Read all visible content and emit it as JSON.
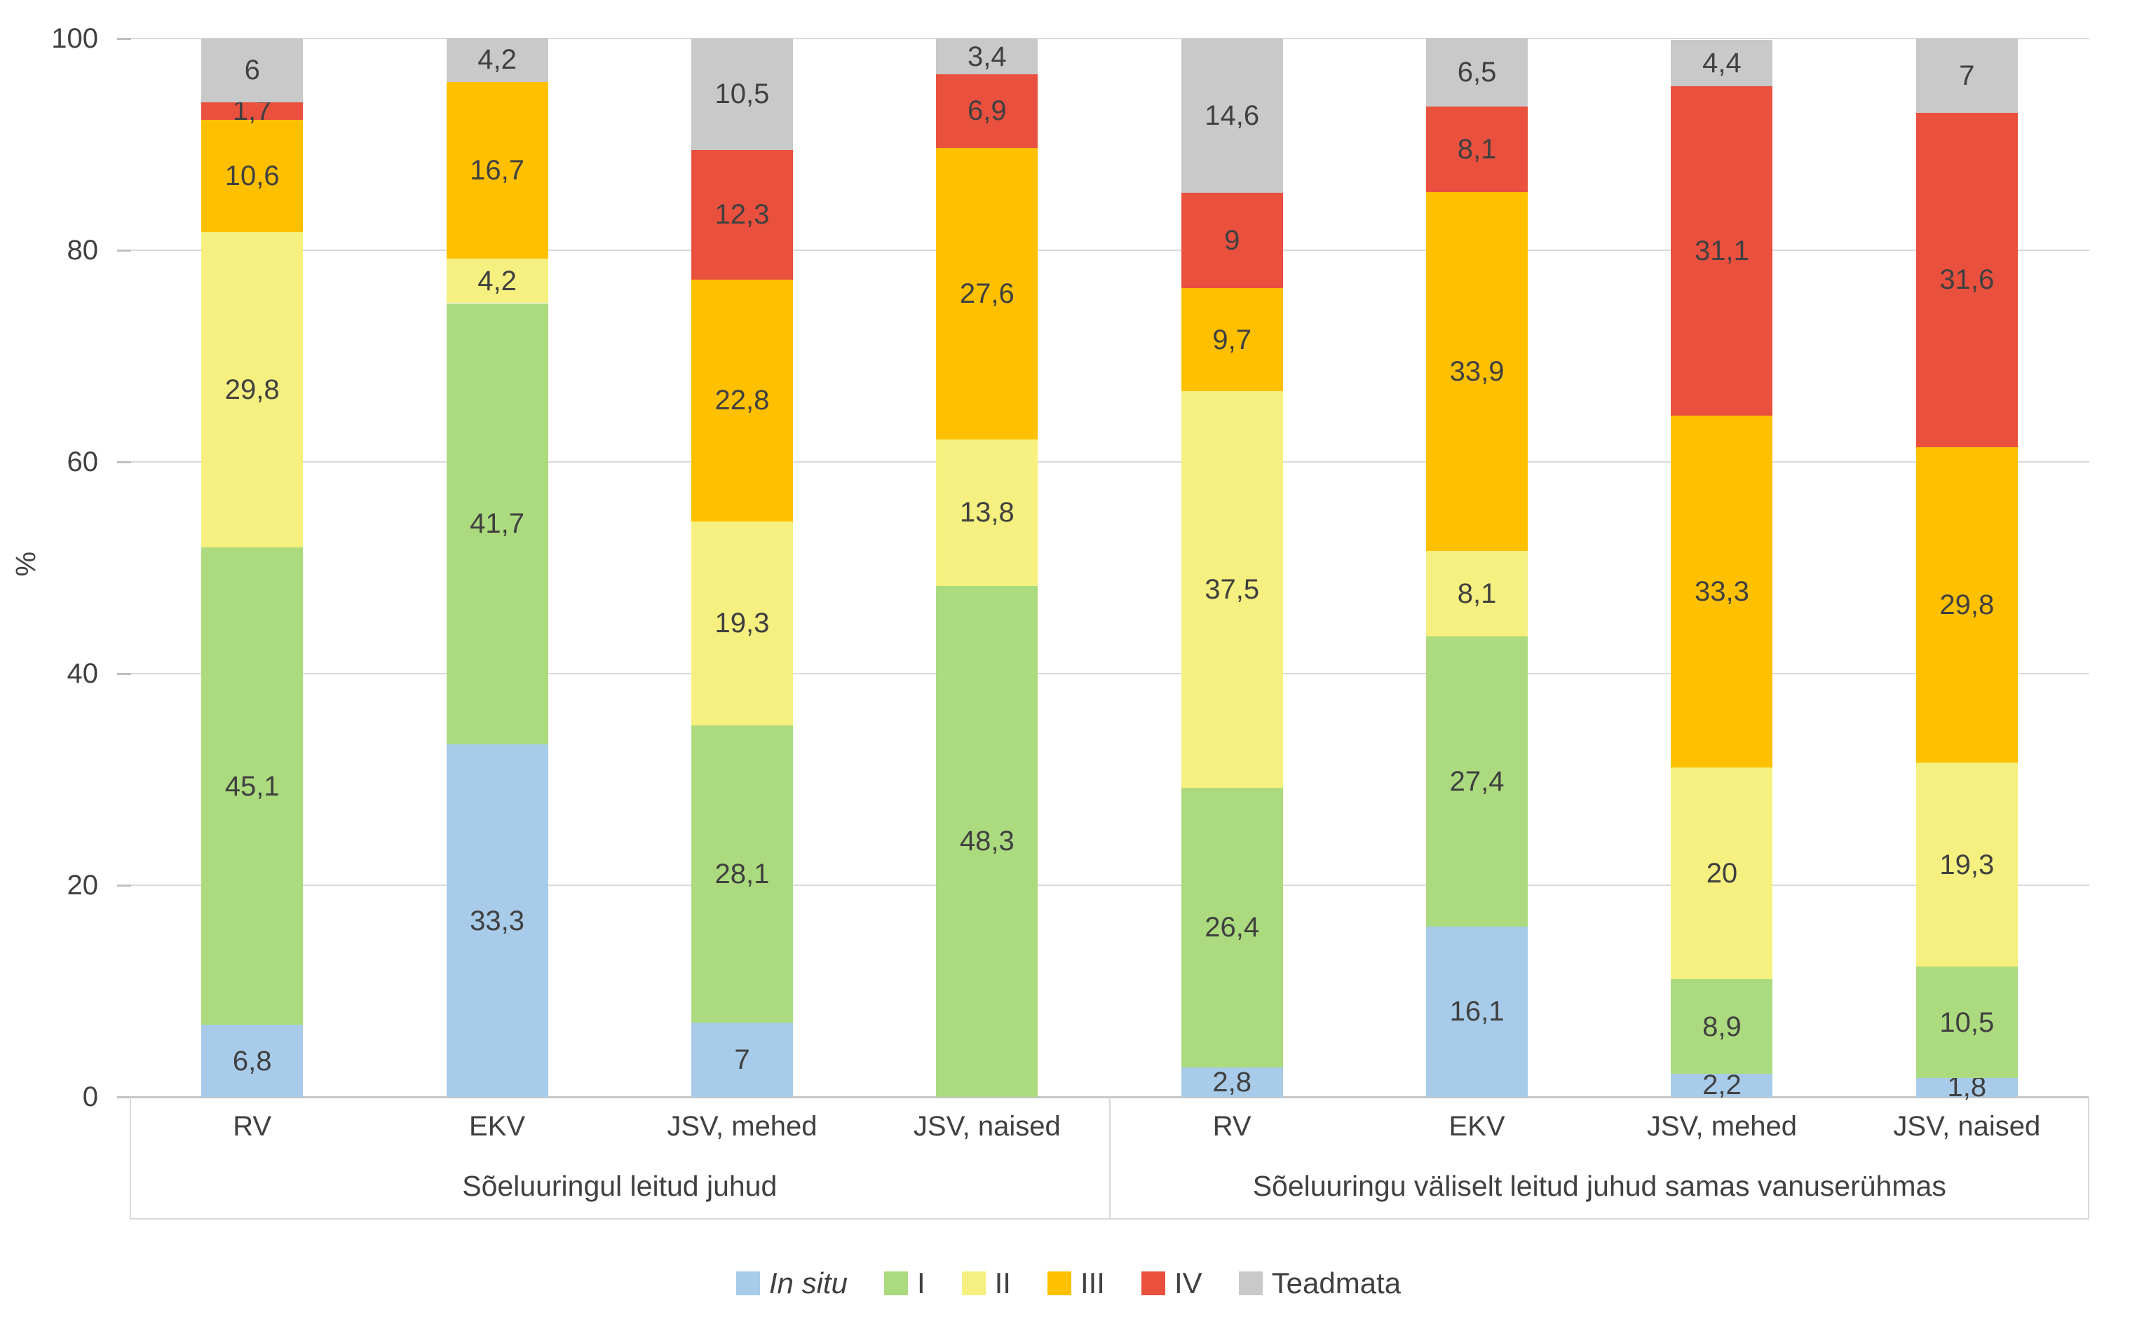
{
  "y_axis": {
    "title": "%"
  },
  "colors": {
    "text": "#404040",
    "gridline": "#D9D9D9",
    "zero_line": "#C6C6C6",
    "tick": "#BFBFBF",
    "box_border": "#D9D9D9",
    "background": "#FFFFFF"
  },
  "chart_data": {
    "type": "bar",
    "stacked": true,
    "title": "",
    "xlabel": "",
    "ylabel": "%",
    "ylim": [
      0,
      100
    ],
    "yticks": [
      0,
      20,
      40,
      60,
      80,
      100
    ],
    "grid": true,
    "legend_position": "bottom",
    "series": [
      {
        "name": "In situ",
        "color": "#A7CBE9",
        "italic": true
      },
      {
        "name": "I",
        "color": "#ABDB7E",
        "italic": false
      },
      {
        "name": "II",
        "color": "#F5F07F",
        "italic": false
      },
      {
        "name": "III",
        "color": "#FFC000",
        "italic": false
      },
      {
        "name": "IV",
        "color": "#E9503E",
        "italic": false
      },
      {
        "name": "Teadmata",
        "color": "#C9C9C9",
        "italic": false
      }
    ],
    "groups": [
      {
        "label": "Sõeluuringul leitud juhud",
        "bars": [
          {
            "category": "RV",
            "values": [
              6.8,
              45.1,
              29.8,
              10.6,
              1.7,
              6
            ],
            "labels": [
              "6,8",
              "45,1",
              "29,8",
              "10,6",
              "1,7",
              "6"
            ]
          },
          {
            "category": "EKV",
            "values": [
              33.3,
              41.7,
              4.2,
              16.7,
              null,
              4.2
            ],
            "labels": [
              "33,3",
              "41,7",
              "4,2",
              "16,7",
              null,
              "4,2"
            ]
          },
          {
            "category": "JSV, mehed",
            "values": [
              7,
              28.1,
              19.3,
              22.8,
              12.3,
              10.5
            ],
            "labels": [
              "7",
              "28,1",
              "19,3",
              "22,8",
              "12,3",
              "10,5"
            ]
          },
          {
            "category": "JSV, naised",
            "values": [
              null,
              48.3,
              13.8,
              27.6,
              6.9,
              3.4
            ],
            "labels": [
              null,
              "48,3",
              "13,8",
              "27,6",
              "6,9",
              "3,4"
            ]
          }
        ]
      },
      {
        "label": "Sõeluuringu väliselt leitud juhud samas vanuserühmas",
        "bars": [
          {
            "category": "RV",
            "values": [
              2.8,
              26.4,
              37.5,
              9.7,
              9,
              14.6
            ],
            "labels": [
              "2,8",
              "26,4",
              "37,5",
              "9,7",
              "9",
              "14,6"
            ]
          },
          {
            "category": "EKV",
            "values": [
              16.1,
              27.4,
              8.1,
              33.9,
              8.1,
              6.5
            ],
            "labels": [
              "16,1",
              "27,4",
              "8,1",
              "33,9",
              "8,1",
              "6,5"
            ]
          },
          {
            "category": "JSV, mehed",
            "values": [
              2.2,
              8.9,
              20,
              33.3,
              31.1,
              4.4
            ],
            "labels": [
              "2,2",
              "8,9",
              "20",
              "33,3",
              "31,1",
              "4,4"
            ]
          },
          {
            "category": "JSV, naised",
            "values": [
              1.8,
              10.5,
              19.3,
              29.8,
              31.6,
              7
            ],
            "labels": [
              "1,8",
              "10,5",
              "19,3",
              "29,8",
              "31,6",
              "7"
            ]
          }
        ]
      }
    ]
  }
}
